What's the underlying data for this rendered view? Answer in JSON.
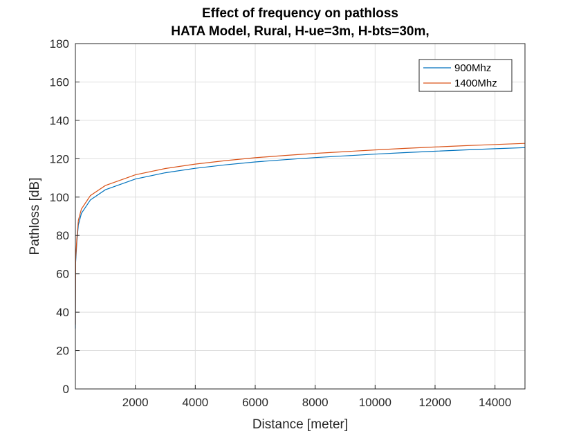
{
  "chart_data": {
    "type": "line",
    "title": "Effect of frequency on pathloss",
    "subtitle": "HATA Model, Rural, H-ue=3m, H-bts=30m,",
    "xlabel": "Distance [meter]",
    "ylabel": "Pathloss [dB]",
    "xlim": [
      0,
      15000
    ],
    "ylim": [
      0,
      180
    ],
    "xticks": [
      2000,
      4000,
      6000,
      8000,
      10000,
      12000,
      14000
    ],
    "yticks": [
      0,
      20,
      40,
      60,
      80,
      100,
      120,
      140,
      160,
      180
    ],
    "grid": true,
    "legend_position": "top-right",
    "x": [
      1,
      10,
      50,
      100,
      200,
      500,
      1000,
      2000,
      3000,
      4000,
      5000,
      6000,
      7000,
      8000,
      9000,
      10000,
      11000,
      12000,
      13000,
      14000,
      15000
    ],
    "series": [
      {
        "name": "900Mhz",
        "color": "#0072BD",
        "values": [
          31.5,
          66.0,
          77.0,
          85.5,
          91.5,
          98.5,
          103.8,
          109.4,
          112.7,
          115.0,
          116.8,
          118.3,
          119.5,
          120.6,
          121.5,
          122.4,
          123.2,
          123.9,
          124.6,
          125.2,
          125.8
        ]
      },
      {
        "name": "1400Mhz",
        "color": "#D95319",
        "values": [
          33.5,
          68.0,
          79.0,
          87.9,
          93.8,
          100.8,
          106.0,
          111.6,
          114.9,
          117.2,
          119.0,
          120.5,
          121.7,
          122.8,
          123.7,
          124.6,
          125.4,
          126.1,
          126.8,
          127.4,
          128.0
        ]
      }
    ]
  }
}
